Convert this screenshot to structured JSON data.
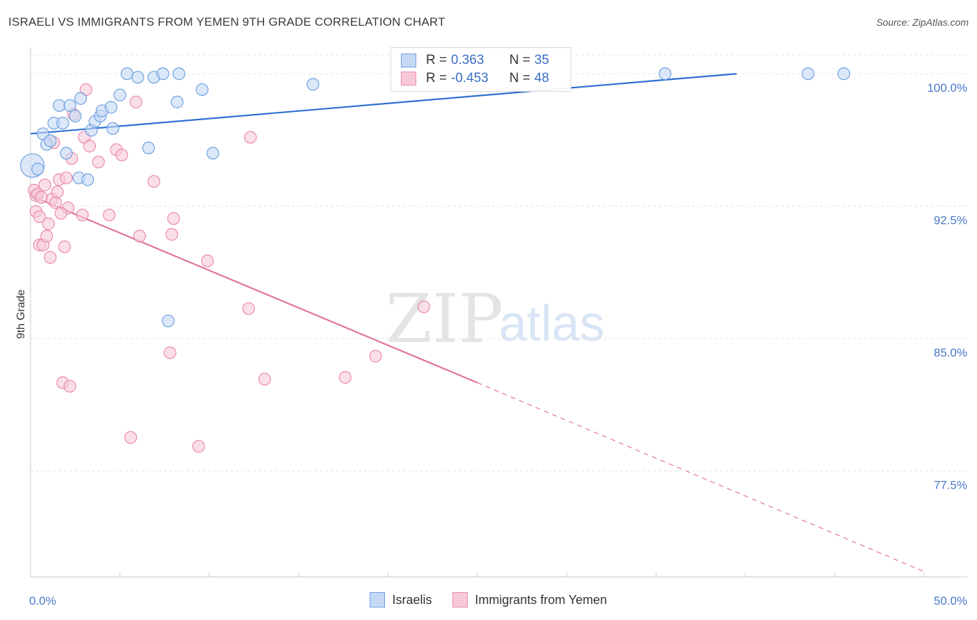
{
  "title": "ISRAELI VS IMMIGRANTS FROM YEMEN 9TH GRADE CORRELATION CHART",
  "source": "Source: ZipAtlas.com",
  "watermark": {
    "zip": "ZIP",
    "atlas": "atlas"
  },
  "legend": [
    {
      "r_label": "R =",
      "r_value": "0.363",
      "n_label": "N =",
      "n_value": "35"
    },
    {
      "r_label": "R =",
      "r_value": "-0.453",
      "n_label": "N =",
      "n_value": "48"
    }
  ],
  "chart_data": {
    "type": "scatter",
    "title": "ISRAELI VS IMMIGRANTS FROM YEMEN 9TH GRADE CORRELATION CHART",
    "xlabel": "",
    "ylabel": "9th Grade",
    "xlim": [
      0,
      50
    ],
    "ylim": [
      71.5,
      101.5
    ],
    "x_tick_labels": [
      {
        "value": 0,
        "label": "0.0%"
      },
      {
        "value": 50,
        "label": "50.0%"
      }
    ],
    "y_tick_labels": [
      {
        "value": 100,
        "label": "100.0%"
      },
      {
        "value": 92.5,
        "label": "92.5%"
      },
      {
        "value": 85,
        "label": "85.0%"
      },
      {
        "value": 77.5,
        "label": "77.5%"
      }
    ],
    "series": [
      {
        "name": "Israelis",
        "color": "#6fa0e0",
        "fill": "#c5d9f5",
        "trend": {
          "x": [
            0,
            39.5
          ],
          "y": [
            96.6,
            100.0
          ]
        },
        "points": [
          {
            "x": 0.1,
            "y": 94.8,
            "big": true
          },
          {
            "x": 0.4,
            "y": 94.6
          },
          {
            "x": 0.7,
            "y": 96.6
          },
          {
            "x": 0.9,
            "y": 96.0
          },
          {
            "x": 1.1,
            "y": 96.2
          },
          {
            "x": 1.3,
            "y": 97.2
          },
          {
            "x": 1.6,
            "y": 98.2
          },
          {
            "x": 1.8,
            "y": 97.2
          },
          {
            "x": 2.0,
            "y": 95.5
          },
          {
            "x": 2.2,
            "y": 98.2
          },
          {
            "x": 2.5,
            "y": 97.6
          },
          {
            "x": 2.7,
            "y": 94.1
          },
          {
            "x": 2.8,
            "y": 98.6
          },
          {
            "x": 3.2,
            "y": 94.0
          },
          {
            "x": 3.4,
            "y": 96.8
          },
          {
            "x": 3.6,
            "y": 97.3
          },
          {
            "x": 3.9,
            "y": 97.6
          },
          {
            "x": 4.0,
            "y": 97.9
          },
          {
            "x": 4.5,
            "y": 98.1
          },
          {
            "x": 4.6,
            "y": 96.9
          },
          {
            "x": 5.0,
            "y": 98.8
          },
          {
            "x": 5.4,
            "y": 100.0
          },
          {
            "x": 6.0,
            "y": 99.8
          },
          {
            "x": 6.6,
            "y": 95.8
          },
          {
            "x": 6.9,
            "y": 99.8
          },
          {
            "x": 7.4,
            "y": 100.0
          },
          {
            "x": 8.2,
            "y": 98.4
          },
          {
            "x": 8.3,
            "y": 100.0
          },
          {
            "x": 9.6,
            "y": 99.1
          },
          {
            "x": 10.2,
            "y": 95.5
          },
          {
            "x": 7.7,
            "y": 86.0
          },
          {
            "x": 15.8,
            "y": 99.4
          },
          {
            "x": 35.5,
            "y": 100.0
          },
          {
            "x": 43.5,
            "y": 100.0
          },
          {
            "x": 45.5,
            "y": 100.0
          }
        ]
      },
      {
        "name": "Immigrants from Yemen",
        "color": "#ea8aaa",
        "fill": "#f7c9d8",
        "trend": {
          "x": [
            0,
            25
          ],
          "y": [
            93.1,
            82.5
          ]
        },
        "trend_dashed": {
          "x": [
            25,
            50
          ],
          "y": [
            82.5,
            71.8
          ]
        },
        "points": [
          {
            "x": 0.2,
            "y": 93.4
          },
          {
            "x": 0.3,
            "y": 93.1
          },
          {
            "x": 0.3,
            "y": 92.2
          },
          {
            "x": 0.4,
            "y": 93.2
          },
          {
            "x": 0.5,
            "y": 91.9
          },
          {
            "x": 0.5,
            "y": 90.3
          },
          {
            "x": 0.7,
            "y": 90.3
          },
          {
            "x": 0.8,
            "y": 93.7
          },
          {
            "x": 0.9,
            "y": 90.8
          },
          {
            "x": 1.0,
            "y": 91.5
          },
          {
            "x": 1.1,
            "y": 89.6
          },
          {
            "x": 1.2,
            "y": 92.9
          },
          {
            "x": 1.3,
            "y": 96.1
          },
          {
            "x": 1.4,
            "y": 92.7
          },
          {
            "x": 1.5,
            "y": 93.3
          },
          {
            "x": 1.6,
            "y": 94.0
          },
          {
            "x": 1.8,
            "y": 82.5
          },
          {
            "x": 1.9,
            "y": 90.2
          },
          {
            "x": 2.0,
            "y": 94.1
          },
          {
            "x": 2.1,
            "y": 92.4
          },
          {
            "x": 2.2,
            "y": 82.3
          },
          {
            "x": 2.3,
            "y": 95.2
          },
          {
            "x": 2.4,
            "y": 97.7
          },
          {
            "x": 2.9,
            "y": 92.0
          },
          {
            "x": 3.0,
            "y": 96.4
          },
          {
            "x": 3.1,
            "y": 99.1
          },
          {
            "x": 3.3,
            "y": 95.9
          },
          {
            "x": 3.8,
            "y": 95.0
          },
          {
            "x": 4.4,
            "y": 92.0
          },
          {
            "x": 4.8,
            "y": 95.7
          },
          {
            "x": 5.1,
            "y": 95.4
          },
          {
            "x": 5.6,
            "y": 79.4
          },
          {
            "x": 5.9,
            "y": 98.4
          },
          {
            "x": 6.1,
            "y": 90.8
          },
          {
            "x": 6.9,
            "y": 93.9
          },
          {
            "x": 7.8,
            "y": 84.2
          },
          {
            "x": 7.9,
            "y": 90.9
          },
          {
            "x": 8.0,
            "y": 91.8
          },
          {
            "x": 9.4,
            "y": 78.9
          },
          {
            "x": 9.9,
            "y": 89.4
          },
          {
            "x": 12.2,
            "y": 86.7
          },
          {
            "x": 12.3,
            "y": 96.4
          },
          {
            "x": 13.1,
            "y": 82.7
          },
          {
            "x": 17.6,
            "y": 82.8
          },
          {
            "x": 19.3,
            "y": 84.0
          },
          {
            "x": 22.0,
            "y": 86.8
          },
          {
            "x": 0.6,
            "y": 93.0
          },
          {
            "x": 1.7,
            "y": 92.1
          }
        ]
      }
    ]
  }
}
